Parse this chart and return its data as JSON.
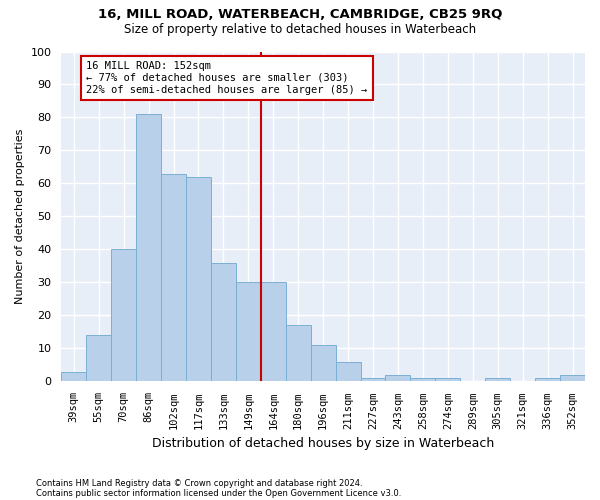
{
  "title1": "16, MILL ROAD, WATERBEACH, CAMBRIDGE, CB25 9RQ",
  "title2": "Size of property relative to detached houses in Waterbeach",
  "xlabel": "Distribution of detached houses by size in Waterbeach",
  "ylabel": "Number of detached properties",
  "footnote1": "Contains HM Land Registry data © Crown copyright and database right 2024.",
  "footnote2": "Contains public sector information licensed under the Open Government Licence v3.0.",
  "categories": [
    "39sqm",
    "55sqm",
    "70sqm",
    "86sqm",
    "102sqm",
    "117sqm",
    "133sqm",
    "149sqm",
    "164sqm",
    "180sqm",
    "196sqm",
    "211sqm",
    "227sqm",
    "243sqm",
    "258sqm",
    "274sqm",
    "289sqm",
    "305sqm",
    "321sqm",
    "336sqm",
    "352sqm"
  ],
  "values": [
    3,
    14,
    40,
    81,
    63,
    62,
    36,
    30,
    30,
    17,
    11,
    6,
    1,
    2,
    1,
    1,
    0,
    1,
    0,
    1,
    2
  ],
  "bar_color": "#b8d0ea",
  "bar_edge_color": "#7aafd4",
  "background_color": "#e8eef8",
  "grid_color": "#ffffff",
  "vline_x": 7.5,
  "vline_color": "#cc0000",
  "annotation_text": "16 MILL ROAD: 152sqm\n← 77% of detached houses are smaller (303)\n22% of semi-detached houses are larger (85) →",
  "annotation_box_color": "#ffffff",
  "annotation_box_edge": "#cc0000",
  "ylim": [
    0,
    100
  ],
  "yticks": [
    0,
    10,
    20,
    30,
    40,
    50,
    60,
    70,
    80,
    90,
    100
  ],
  "fig_bg": "#ffffff",
  "title1_fontsize": 9.5,
  "title2_fontsize": 8.5
}
